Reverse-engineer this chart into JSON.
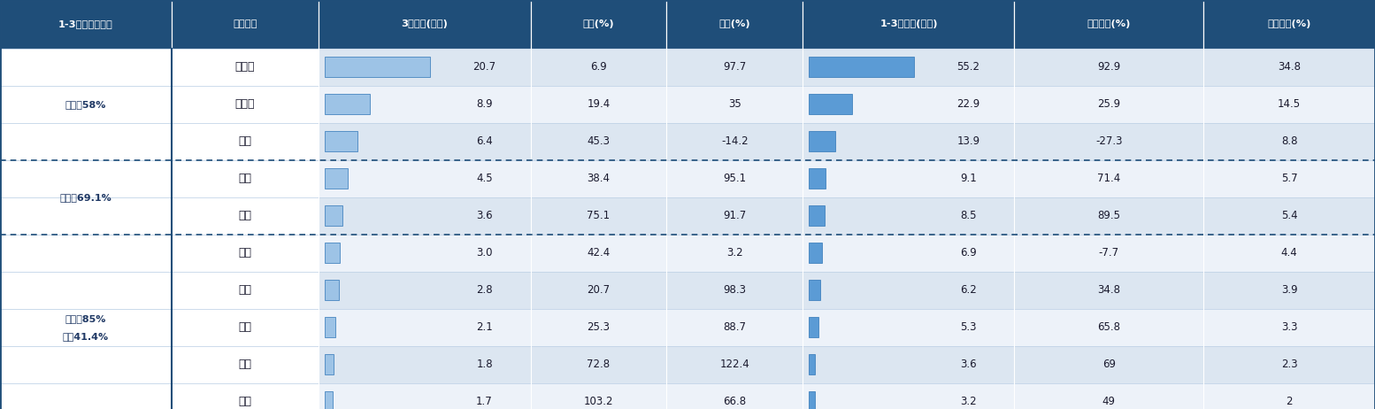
{
  "headers": [
    "1-3月市场集中度",
    "企业名称",
    "3月销量(万辆)",
    "环比(%)",
    "同比(%)",
    "1-3月销量(万辆)",
    "同比增长(%)",
    "市场份额(%)"
  ],
  "header_bg": "#1f4e79",
  "header_text_color": "#ffffff",
  "bar_color_march": "#9dc3e6",
  "bar_color_q1": "#5b9bd5",
  "bar_border_color": "#2e75b6",
  "dashed_line_color": "#1f4e79",
  "groups": [
    {
      "label": "前三家58%",
      "rows": [
        {
          "company": "比亚迪",
          "march_sales": 20.7,
          "mom": "6.9",
          "yoy": "97.7",
          "q1_sales": 55.2,
          "q1_yoy": "92.9",
          "share": "34.8"
        },
        {
          "company": "特斯拉",
          "march_sales": 8.9,
          "mom": "19.4",
          "yoy": "35",
          "q1_sales": 22.9,
          "q1_yoy": "25.9",
          "share": "14.5"
        },
        {
          "company": "上汽",
          "march_sales": 6.4,
          "mom": "45.3",
          "yoy": "-14.2",
          "q1_sales": 13.9,
          "q1_yoy": "-27.3",
          "share": "8.8"
        }
      ],
      "dashed_bottom": true
    },
    {
      "label": "前五家69.1%",
      "rows": [
        {
          "company": "广汽",
          "march_sales": 4.5,
          "mom": "38.4",
          "yoy": "95.1",
          "q1_sales": 9.1,
          "q1_yoy": "71.4",
          "share": "5.7"
        },
        {
          "company": "长安",
          "march_sales": 3.6,
          "mom": "75.1",
          "yoy": "91.7",
          "q1_sales": 8.5,
          "q1_yoy": "89.5",
          "share": "5.4"
        }
      ],
      "dashed_bottom": true
    },
    {
      "label": "前十家85%\n同比41.4%",
      "rows": [
        {
          "company": "东风",
          "march_sales": 3.0,
          "mom": "42.4",
          "yoy": "3.2",
          "q1_sales": 6.9,
          "q1_yoy": "-7.7",
          "share": "4.4"
        },
        {
          "company": "吉利",
          "march_sales": 2.8,
          "mom": "20.7",
          "yoy": "98.3",
          "q1_sales": 6.2,
          "q1_yoy": "34.8",
          "share": "3.9"
        },
        {
          "company": "理想",
          "march_sales": 2.1,
          "mom": "25.3",
          "yoy": "88.7",
          "q1_sales": 5.3,
          "q1_yoy": "65.8",
          "share": "3.3"
        },
        {
          "company": "一汽",
          "march_sales": 1.8,
          "mom": "72.8",
          "yoy": "122.4",
          "q1_sales": 3.6,
          "q1_yoy": "69",
          "share": "2.3"
        },
        {
          "company": "北汽",
          "march_sales": 1.7,
          "mom": "103.2",
          "yoy": "66.8",
          "q1_sales": 3.2,
          "q1_yoy": "49",
          "share": "2"
        }
      ],
      "dashed_bottom": false
    }
  ],
  "march_max": 20.7,
  "q1_max": 55.2,
  "figsize": [
    15.54,
    4.62
  ],
  "dpi": 100
}
